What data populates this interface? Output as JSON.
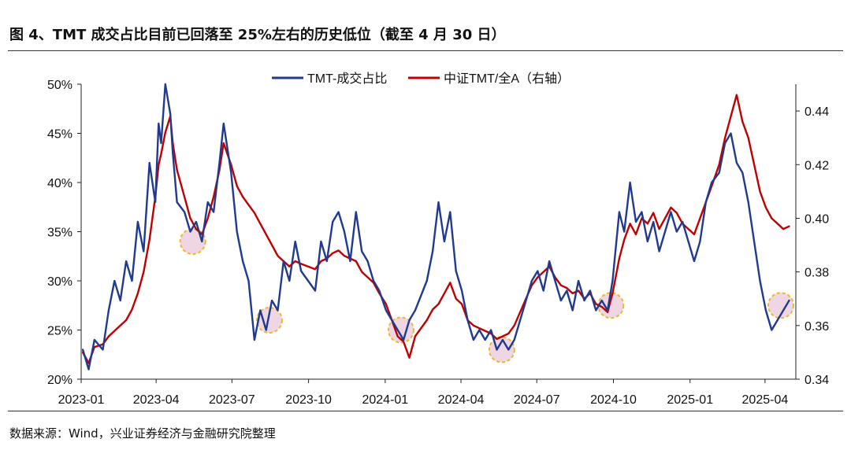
{
  "figure": {
    "title": "图 4、TMT 成交占比目前已回落至 25%左右的历史低位（截至 4 月 30 日）",
    "source": "数据来源：Wind，兴业证券经济与金融研究院整理"
  },
  "colors": {
    "series1": "#1F3A8F",
    "series2": "#C00000",
    "highlight_edge": "#F2B431",
    "highlight_fill": "#E8C8D8"
  },
  "chart_data": {
    "type": "line",
    "grid": false,
    "legend_position": "top-center",
    "x_range": [
      "2023-01-01",
      "2025-05-08"
    ],
    "x_ticks": [
      "2023-01",
      "2023-04",
      "2023-07",
      "2023-10",
      "2024-01",
      "2024-04",
      "2024-07",
      "2024-10",
      "2025-01",
      "2025-04"
    ],
    "x_tick_dates": [
      "2023-01-01",
      "2023-04-01",
      "2023-07-01",
      "2023-10-01",
      "2024-01-01",
      "2024-04-01",
      "2024-07-01",
      "2024-10-01",
      "2025-01-01",
      "2025-04-01"
    ],
    "y_left": {
      "ticks": [
        "20%",
        "25%",
        "30%",
        "35%",
        "40%",
        "45%",
        "50%"
      ],
      "range": [
        20,
        50
      ]
    },
    "y_right": {
      "ticks": [
        "0.34",
        "0.36",
        "0.38",
        "0.40",
        "0.42",
        "0.44"
      ],
      "range": [
        0.34,
        0.45
      ]
    },
    "series": [
      {
        "name": "TMT-成交占比",
        "axis": "left",
        "points": [
          [
            "2023-01-03",
            23
          ],
          [
            "2023-01-10",
            21
          ],
          [
            "2023-01-17",
            24
          ],
          [
            "2023-01-27",
            23
          ],
          [
            "2023-02-03",
            27
          ],
          [
            "2023-02-10",
            30
          ],
          [
            "2023-02-17",
            28
          ],
          [
            "2023-02-24",
            32
          ],
          [
            "2023-03-03",
            30
          ],
          [
            "2023-03-10",
            36
          ],
          [
            "2023-03-17",
            33
          ],
          [
            "2023-03-24",
            42
          ],
          [
            "2023-03-31",
            38
          ],
          [
            "2023-04-04",
            46
          ],
          [
            "2023-04-07",
            44
          ],
          [
            "2023-04-12",
            50
          ],
          [
            "2023-04-18",
            47
          ],
          [
            "2023-04-21",
            43
          ],
          [
            "2023-04-26",
            38
          ],
          [
            "2023-05-05",
            37
          ],
          [
            "2023-05-12",
            35
          ],
          [
            "2023-05-19",
            36
          ],
          [
            "2023-05-26",
            34
          ],
          [
            "2023-06-02",
            38
          ],
          [
            "2023-06-09",
            37
          ],
          [
            "2023-06-16",
            42
          ],
          [
            "2023-06-21",
            46
          ],
          [
            "2023-06-30",
            41
          ],
          [
            "2023-07-07",
            35
          ],
          [
            "2023-07-14",
            32
          ],
          [
            "2023-07-21",
            30
          ],
          [
            "2023-07-28",
            24
          ],
          [
            "2023-08-04",
            27
          ],
          [
            "2023-08-11",
            25
          ],
          [
            "2023-08-18",
            28
          ],
          [
            "2023-08-25",
            27
          ],
          [
            "2023-09-01",
            32
          ],
          [
            "2023-09-08",
            30
          ],
          [
            "2023-09-15",
            34
          ],
          [
            "2023-09-22",
            31
          ],
          [
            "2023-10-09",
            29
          ],
          [
            "2023-10-16",
            34
          ],
          [
            "2023-10-23",
            32
          ],
          [
            "2023-10-30",
            36
          ],
          [
            "2023-11-06",
            37
          ],
          [
            "2023-11-13",
            35
          ],
          [
            "2023-11-20",
            32
          ],
          [
            "2023-11-27",
            37
          ],
          [
            "2023-12-04",
            33
          ],
          [
            "2023-12-11",
            32
          ],
          [
            "2023-12-18",
            30
          ],
          [
            "2023-12-25",
            29
          ],
          [
            "2024-01-02",
            27
          ],
          [
            "2024-01-09",
            26
          ],
          [
            "2024-01-16",
            25
          ],
          [
            "2024-01-23",
            24
          ],
          [
            "2024-01-30",
            26
          ],
          [
            "2024-02-06",
            27
          ],
          [
            "2024-02-20",
            30
          ],
          [
            "2024-02-27",
            33
          ],
          [
            "2024-03-05",
            38
          ],
          [
            "2024-03-12",
            34
          ],
          [
            "2024-03-19",
            37
          ],
          [
            "2024-03-26",
            31
          ],
          [
            "2024-04-02",
            29
          ],
          [
            "2024-04-09",
            26
          ],
          [
            "2024-04-16",
            24
          ],
          [
            "2024-04-23",
            25
          ],
          [
            "2024-04-30",
            24
          ],
          [
            "2024-05-07",
            25
          ],
          [
            "2024-05-14",
            23
          ],
          [
            "2024-05-21",
            24
          ],
          [
            "2024-05-28",
            23
          ],
          [
            "2024-06-04",
            24
          ],
          [
            "2024-06-11",
            26
          ],
          [
            "2024-06-18",
            28
          ],
          [
            "2024-06-25",
            30
          ],
          [
            "2024-07-02",
            31
          ],
          [
            "2024-07-09",
            29
          ],
          [
            "2024-07-16",
            32
          ],
          [
            "2024-07-23",
            30
          ],
          [
            "2024-07-30",
            28
          ],
          [
            "2024-08-06",
            29
          ],
          [
            "2024-08-13",
            27
          ],
          [
            "2024-08-20",
            30
          ],
          [
            "2024-08-27",
            28
          ],
          [
            "2024-09-03",
            29
          ],
          [
            "2024-09-10",
            27
          ],
          [
            "2024-09-17",
            28
          ],
          [
            "2024-09-24",
            27
          ],
          [
            "2024-09-30",
            30
          ],
          [
            "2024-10-08",
            37
          ],
          [
            "2024-10-14",
            35
          ],
          [
            "2024-10-21",
            40
          ],
          [
            "2024-10-28",
            36
          ],
          [
            "2024-11-04",
            37
          ],
          [
            "2024-11-11",
            34
          ],
          [
            "2024-11-18",
            36
          ],
          [
            "2024-11-25",
            33
          ],
          [
            "2024-12-02",
            35
          ],
          [
            "2024-12-09",
            37
          ],
          [
            "2024-12-16",
            35
          ],
          [
            "2024-12-23",
            36
          ],
          [
            "2024-12-30",
            34
          ],
          [
            "2025-01-06",
            32
          ],
          [
            "2025-01-13",
            34
          ],
          [
            "2025-01-20",
            38
          ],
          [
            "2025-01-27",
            40
          ],
          [
            "2025-02-05",
            41
          ],
          [
            "2025-02-12",
            44
          ],
          [
            "2025-02-19",
            45
          ],
          [
            "2025-02-26",
            42
          ],
          [
            "2025-03-05",
            41
          ],
          [
            "2025-03-12",
            38
          ],
          [
            "2025-03-19",
            34
          ],
          [
            "2025-03-26",
            30
          ],
          [
            "2025-04-02",
            27
          ],
          [
            "2025-04-09",
            25
          ],
          [
            "2025-04-16",
            26
          ],
          [
            "2025-04-23",
            27
          ],
          [
            "2025-04-30",
            28
          ]
        ]
      },
      {
        "name": "中证TMT/全A（右轴）",
        "axis": "right",
        "points": [
          [
            "2023-01-03",
            0.35
          ],
          [
            "2023-01-10",
            0.346
          ],
          [
            "2023-01-17",
            0.352
          ],
          [
            "2023-01-27",
            0.353
          ],
          [
            "2023-02-03",
            0.356
          ],
          [
            "2023-02-10",
            0.358
          ],
          [
            "2023-02-17",
            0.36
          ],
          [
            "2023-02-24",
            0.362
          ],
          [
            "2023-03-03",
            0.366
          ],
          [
            "2023-03-10",
            0.372
          ],
          [
            "2023-03-17",
            0.38
          ],
          [
            "2023-03-24",
            0.392
          ],
          [
            "2023-03-31",
            0.408
          ],
          [
            "2023-04-04",
            0.42
          ],
          [
            "2023-04-07",
            0.424
          ],
          [
            "2023-04-12",
            0.432
          ],
          [
            "2023-04-18",
            0.438
          ],
          [
            "2023-04-21",
            0.428
          ],
          [
            "2023-04-26",
            0.418
          ],
          [
            "2023-05-05",
            0.408
          ],
          [
            "2023-05-12",
            0.4
          ],
          [
            "2023-05-19",
            0.396
          ],
          [
            "2023-05-26",
            0.394
          ],
          [
            "2023-06-02",
            0.4
          ],
          [
            "2023-06-09",
            0.408
          ],
          [
            "2023-06-16",
            0.418
          ],
          [
            "2023-06-21",
            0.428
          ],
          [
            "2023-06-30",
            0.42
          ],
          [
            "2023-07-07",
            0.412
          ],
          [
            "2023-07-14",
            0.408
          ],
          [
            "2023-07-21",
            0.405
          ],
          [
            "2023-07-28",
            0.402
          ],
          [
            "2023-08-04",
            0.398
          ],
          [
            "2023-08-11",
            0.394
          ],
          [
            "2023-08-18",
            0.39
          ],
          [
            "2023-08-25",
            0.386
          ],
          [
            "2023-09-01",
            0.384
          ],
          [
            "2023-09-08",
            0.382
          ],
          [
            "2023-09-15",
            0.384
          ],
          [
            "2023-09-22",
            0.383
          ],
          [
            "2023-10-09",
            0.381
          ],
          [
            "2023-10-16",
            0.384
          ],
          [
            "2023-10-23",
            0.385
          ],
          [
            "2023-10-30",
            0.387
          ],
          [
            "2023-11-06",
            0.388
          ],
          [
            "2023-11-13",
            0.386
          ],
          [
            "2023-11-20",
            0.385
          ],
          [
            "2023-11-27",
            0.384
          ],
          [
            "2023-12-04",
            0.38
          ],
          [
            "2023-12-11",
            0.378
          ],
          [
            "2023-12-18",
            0.376
          ],
          [
            "2023-12-25",
            0.372
          ],
          [
            "2024-01-02",
            0.368
          ],
          [
            "2024-01-09",
            0.362
          ],
          [
            "2024-01-16",
            0.356
          ],
          [
            "2024-01-23",
            0.354
          ],
          [
            "2024-01-30",
            0.348
          ],
          [
            "2024-02-06",
            0.356
          ],
          [
            "2024-02-20",
            0.362
          ],
          [
            "2024-02-27",
            0.366
          ],
          [
            "2024-03-05",
            0.368
          ],
          [
            "2024-03-12",
            0.372
          ],
          [
            "2024-03-19",
            0.376
          ],
          [
            "2024-03-26",
            0.37
          ],
          [
            "2024-04-02",
            0.368
          ],
          [
            "2024-04-09",
            0.362
          ],
          [
            "2024-04-16",
            0.36
          ],
          [
            "2024-04-23",
            0.359
          ],
          [
            "2024-04-30",
            0.358
          ],
          [
            "2024-05-07",
            0.357
          ],
          [
            "2024-05-14",
            0.355
          ],
          [
            "2024-05-21",
            0.356
          ],
          [
            "2024-05-28",
            0.357
          ],
          [
            "2024-06-04",
            0.36
          ],
          [
            "2024-06-11",
            0.365
          ],
          [
            "2024-06-18",
            0.37
          ],
          [
            "2024-06-25",
            0.375
          ],
          [
            "2024-07-02",
            0.378
          ],
          [
            "2024-07-09",
            0.38
          ],
          [
            "2024-07-16",
            0.382
          ],
          [
            "2024-07-23",
            0.378
          ],
          [
            "2024-07-30",
            0.375
          ],
          [
            "2024-08-06",
            0.374
          ],
          [
            "2024-08-13",
            0.372
          ],
          [
            "2024-08-20",
            0.373
          ],
          [
            "2024-08-27",
            0.37
          ],
          [
            "2024-09-03",
            0.372
          ],
          [
            "2024-09-10",
            0.368
          ],
          [
            "2024-09-17",
            0.367
          ],
          [
            "2024-09-24",
            0.365
          ],
          [
            "2024-09-30",
            0.372
          ],
          [
            "2024-10-08",
            0.385
          ],
          [
            "2024-10-14",
            0.392
          ],
          [
            "2024-10-21",
            0.398
          ],
          [
            "2024-10-28",
            0.394
          ],
          [
            "2024-11-04",
            0.4
          ],
          [
            "2024-11-11",
            0.398
          ],
          [
            "2024-11-18",
            0.402
          ],
          [
            "2024-11-25",
            0.396
          ],
          [
            "2024-12-02",
            0.4
          ],
          [
            "2024-12-09",
            0.404
          ],
          [
            "2024-12-16",
            0.402
          ],
          [
            "2024-12-23",
            0.398
          ],
          [
            "2024-12-30",
            0.396
          ],
          [
            "2025-01-06",
            0.394
          ],
          [
            "2025-01-13",
            0.4
          ],
          [
            "2025-01-20",
            0.406
          ],
          [
            "2025-01-27",
            0.412
          ],
          [
            "2025-02-05",
            0.42
          ],
          [
            "2025-02-12",
            0.43
          ],
          [
            "2025-02-19",
            0.438
          ],
          [
            "2025-02-26",
            0.446
          ],
          [
            "2025-03-05",
            0.436
          ],
          [
            "2025-03-12",
            0.43
          ],
          [
            "2025-03-19",
            0.42
          ],
          [
            "2025-03-26",
            0.41
          ],
          [
            "2025-04-02",
            0.404
          ],
          [
            "2025-04-09",
            0.4
          ],
          [
            "2025-04-16",
            0.398
          ],
          [
            "2025-04-23",
            0.396
          ],
          [
            "2025-04-30",
            0.397
          ]
        ]
      }
    ],
    "highlights": [
      {
        "date": "2023-05-15",
        "value": 34
      },
      {
        "date": "2023-08-15",
        "value": 26
      },
      {
        "date": "2024-01-20",
        "value": 25
      },
      {
        "date": "2024-05-20",
        "value": 23
      },
      {
        "date": "2024-09-28",
        "value": 27.5
      },
      {
        "date": "2025-04-20",
        "value": 27.5
      }
    ]
  }
}
